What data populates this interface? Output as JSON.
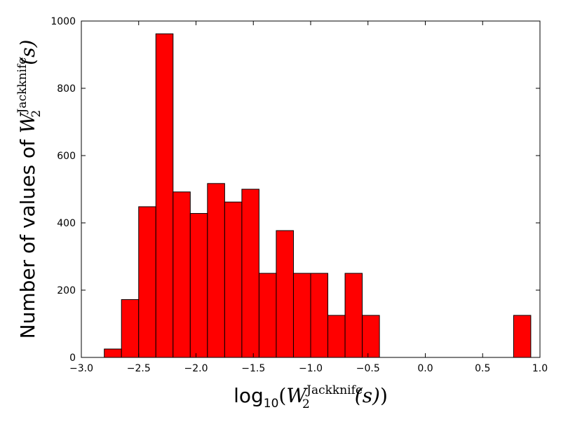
{
  "chart_data": {
    "type": "bar",
    "xlim": [
      -3.0,
      1.0
    ],
    "ylim": [
      0,
      1000
    ],
    "xticks": [
      "-3.0",
      "-2.5",
      "-2.0",
      "-1.5",
      "-1.0",
      "-0.5",
      "0.0",
      "0.5",
      "1.0"
    ],
    "yticks": [
      "0",
      "200",
      "400",
      "600",
      "800",
      "1000"
    ],
    "xlabel": {
      "prefix": "log",
      "sub": "10",
      "open": "(",
      "var": "W",
      "var_sub": "2",
      "sup": "Jackknife",
      "arg": "(s)",
      "close": ")"
    },
    "ylabel": {
      "prefix": "Number of values of ",
      "var": "W",
      "var_sub": "2",
      "sup": "Jackknife",
      "arg": "(s)"
    },
    "bar_color": "#ff0000",
    "edge_color": "#000000",
    "grid": false,
    "bins": [
      {
        "x0": -2.8,
        "x1": -2.65,
        "count": 25
      },
      {
        "x0": -2.65,
        "x1": -2.5,
        "count": 172
      },
      {
        "x0": -2.5,
        "x1": -2.35,
        "count": 448
      },
      {
        "x0": -2.35,
        "x1": -2.2,
        "count": 962
      },
      {
        "x0": -2.2,
        "x1": -2.05,
        "count": 492
      },
      {
        "x0": -2.05,
        "x1": -1.9,
        "count": 428
      },
      {
        "x0": -1.9,
        "x1": -1.75,
        "count": 517
      },
      {
        "x0": -1.75,
        "x1": -1.6,
        "count": 462
      },
      {
        "x0": -1.6,
        "x1": -1.45,
        "count": 500
      },
      {
        "x0": -1.45,
        "x1": -1.3,
        "count": 250
      },
      {
        "x0": -1.3,
        "x1": -1.15,
        "count": 377
      },
      {
        "x0": -1.15,
        "x1": -1.0,
        "count": 250
      },
      {
        "x0": -1.0,
        "x1": -0.85,
        "count": 250
      },
      {
        "x0": -0.85,
        "x1": -0.7,
        "count": 125
      },
      {
        "x0": -0.7,
        "x1": -0.55,
        "count": 250
      },
      {
        "x0": -0.55,
        "x1": -0.4,
        "count": 125
      },
      {
        "x0": 0.77,
        "x1": 0.92,
        "count": 125
      }
    ]
  }
}
